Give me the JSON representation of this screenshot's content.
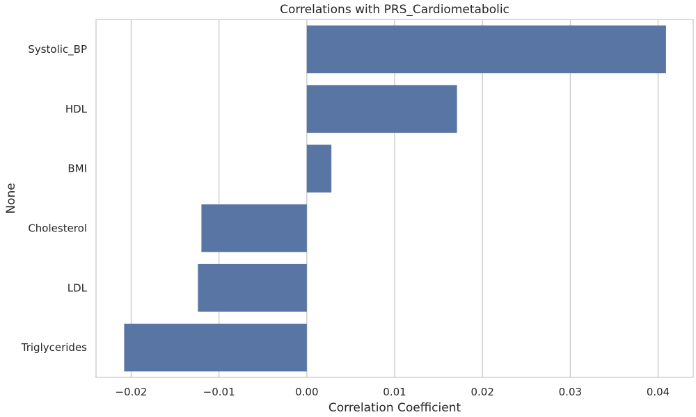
{
  "chart_data": {
    "type": "bar",
    "orientation": "horizontal",
    "title": "Correlations with PRS_Cardiometabolic",
    "xlabel": "Correlation Coefficient",
    "ylabel": "None",
    "categories": [
      "Systolic_BP",
      "HDL",
      "BMI",
      "Cholesterol",
      "LDL",
      "Triglycerides"
    ],
    "values": [
      0.0409,
      0.0171,
      0.0028,
      -0.012,
      -0.0124,
      -0.0208
    ],
    "xlim": [
      -0.024,
      0.044
    ],
    "xticks": [
      -0.02,
      -0.01,
      0.0,
      0.01,
      0.02,
      0.03,
      0.04
    ],
    "xtick_labels": [
      "−0.02",
      "−0.01",
      "0.00",
      "0.01",
      "0.02",
      "0.03",
      "0.04"
    ],
    "grid": "vertical",
    "bar_color": "#5875a4",
    "grid_color": "#cccccc"
  }
}
